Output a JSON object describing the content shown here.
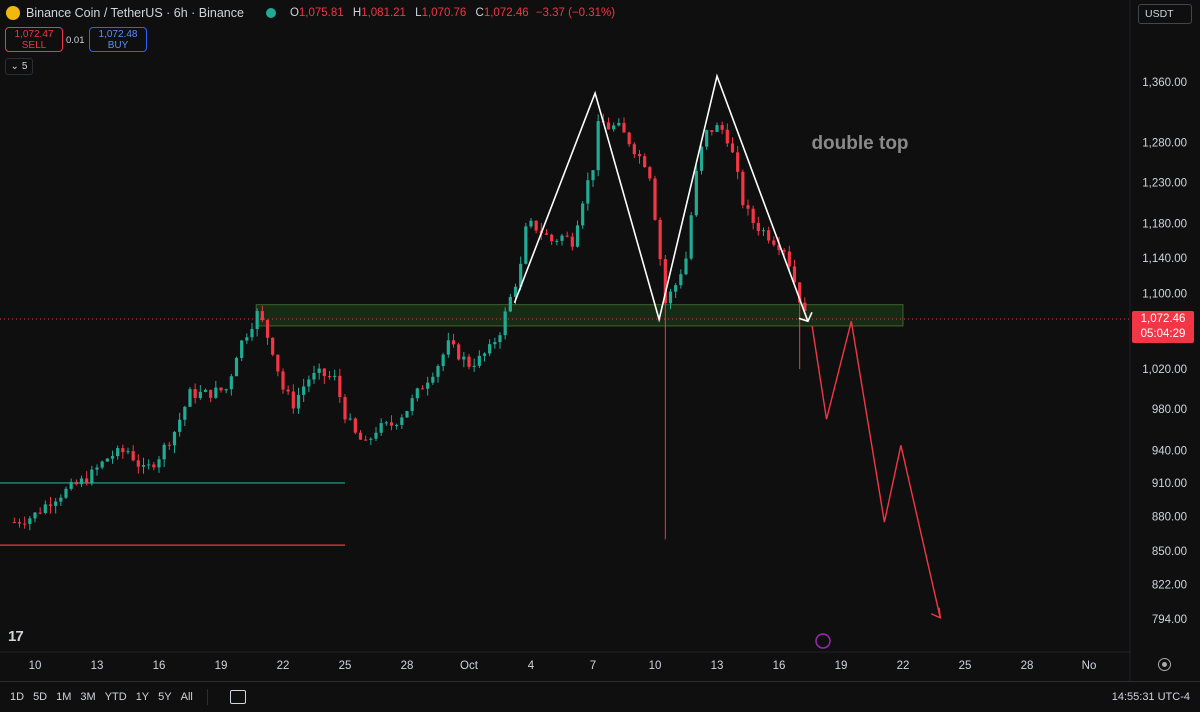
{
  "header": {
    "symbol": "Binance Coin / TetherUS · 6h · Binance",
    "o_label": "O",
    "o": "1,075.81",
    "h_label": "H",
    "h": "1,081.21",
    "l_label": "L",
    "l": "1,070.76",
    "c_label": "C",
    "c": "1,072.46",
    "change": "−3.37 (−0.31%)"
  },
  "trade": {
    "sell_price": "1,072.47",
    "sell_label": "SELL",
    "spread": "0.01",
    "buy_price": "1,072.48",
    "buy_label": "BUY"
  },
  "indicator_toggle": "5",
  "currency": "USDT",
  "last_price": {
    "value": "1,072.46",
    "countdown": "05:04:29"
  },
  "time_ranges": [
    "1D",
    "5D",
    "1M",
    "3M",
    "YTD",
    "1Y",
    "5Y",
    "All"
  ],
  "clock": "14:55:31 UTC-4",
  "colors": {
    "up": "#22ab94",
    "down": "#f23645",
    "background": "#0f0f0f",
    "pattern": "#ffffff",
    "projection": "#f23645"
  },
  "chart_data": {
    "type": "candlestick",
    "symbol": "BNBUSDT",
    "interval": "6h",
    "y_scale": "log",
    "ylim": [
      780,
      1400
    ],
    "y_ticks": [
      794,
      822,
      850,
      880,
      910,
      940,
      980,
      1020,
      1060,
      1100,
      1140,
      1180,
      1230,
      1280,
      1320,
      1360
    ],
    "y_tick_labels": [
      "794.00",
      "822.00",
      "850.00",
      "880.00",
      "910.00",
      "940.00",
      "980.00",
      "1,020.00",
      "",
      "1,100.00",
      "1,140.00",
      "1,180.00",
      "1,230.00",
      "1,280.00",
      "",
      "1,360.00"
    ],
    "x_ticks": [
      {
        "d": 10,
        "label": "10"
      },
      {
        "d": 13,
        "label": "13"
      },
      {
        "d": 16,
        "label": "16"
      },
      {
        "d": 19,
        "label": "19"
      },
      {
        "d": 22,
        "label": "22"
      },
      {
        "d": 25,
        "label": "25"
      },
      {
        "d": 28,
        "label": "28"
      },
      {
        "d": 31,
        "label": "Oct"
      },
      {
        "d": 34,
        "label": "4"
      },
      {
        "d": 37,
        "label": "7"
      },
      {
        "d": 40,
        "label": "10"
      },
      {
        "d": 43,
        "label": "13"
      },
      {
        "d": 46,
        "label": "16"
      },
      {
        "d": 49,
        "label": "19"
      },
      {
        "d": 52,
        "label": "22"
      },
      {
        "d": 55,
        "label": "25"
      },
      {
        "d": 58,
        "label": "28"
      },
      {
        "d": 61,
        "label": "No"
      }
    ],
    "x_start_label": "9",
    "grid": false,
    "anchors": [
      [
        9.0,
        875
      ],
      [
        9.9,
        880
      ],
      [
        10.8,
        895
      ],
      [
        11.7,
        905
      ],
      [
        12.6,
        915
      ],
      [
        13.6,
        935
      ],
      [
        14.5,
        940
      ],
      [
        15.3,
        920
      ],
      [
        16.0,
        935
      ],
      [
        16.8,
        960
      ],
      [
        17.5,
        995
      ],
      [
        18.3,
        995
      ],
      [
        19.3,
        1000
      ],
      [
        19.8,
        1040
      ],
      [
        20.8,
        1080
      ],
      [
        21.5,
        1040
      ],
      [
        22.0,
        1000
      ],
      [
        22.5,
        985
      ],
      [
        23.2,
        1010
      ],
      [
        23.8,
        1015
      ],
      [
        24.5,
        1010
      ],
      [
        25.0,
        975
      ],
      [
        25.5,
        955
      ],
      [
        26.0,
        945
      ],
      [
        26.5,
        960
      ],
      [
        27.3,
        965
      ],
      [
        28.0,
        980
      ],
      [
        28.8,
        1005
      ],
      [
        29.5,
        1025
      ],
      [
        30.0,
        1045
      ],
      [
        30.5,
        1035
      ],
      [
        31.0,
        1025
      ],
      [
        31.5,
        1030
      ],
      [
        32.0,
        1040
      ],
      [
        32.5,
        1060
      ],
      [
        33.0,
        1095
      ],
      [
        33.5,
        1130
      ],
      [
        33.8,
        1180
      ],
      [
        34.3,
        1175
      ],
      [
        35.0,
        1160
      ],
      [
        35.5,
        1165
      ],
      [
        36.0,
        1160
      ],
      [
        36.5,
        1210
      ],
      [
        37.0,
        1250
      ],
      [
        37.3,
        1310
      ],
      [
        37.7,
        1300
      ],
      [
        38.2,
        1300
      ],
      [
        38.8,
        1280
      ],
      [
        39.3,
        1260
      ],
      [
        39.7,
        1250
      ],
      [
        40.2,
        1150
      ],
      [
        40.5,
        1090
      ],
      [
        41.0,
        1110
      ],
      [
        41.5,
        1140
      ],
      [
        42.0,
        1240
      ],
      [
        42.4,
        1290
      ],
      [
        42.9,
        1300
      ],
      [
        43.4,
        1295
      ],
      [
        43.8,
        1260
      ],
      [
        44.3,
        1200
      ],
      [
        44.8,
        1180
      ],
      [
        45.3,
        1170
      ],
      [
        45.8,
        1160
      ],
      [
        46.3,
        1150
      ],
      [
        46.8,
        1110
      ],
      [
        47.3,
        1072.46
      ]
    ],
    "pattern": {
      "label": "double top",
      "zigzag": [
        [
          33.2,
          1090
        ],
        [
          37.1,
          1345
        ],
        [
          40.2,
          1072
        ],
        [
          43.0,
          1368
        ],
        [
          47.4,
          1070
        ]
      ],
      "arrow_tip": [
        47.4,
        1070
      ]
    },
    "projection": [
      [
        47.6,
        1065
      ],
      [
        48.3,
        970
      ],
      [
        49.5,
        1070
      ],
      [
        51.1,
        875
      ],
      [
        51.9,
        945
      ],
      [
        53.8,
        795
      ]
    ],
    "support_zone": {
      "from_d": 20.7,
      "to_d": 52,
      "low": 1065,
      "high": 1088
    },
    "hlines": [
      {
        "from_d": 9,
        "to_d": 25,
        "y": 910,
        "color": "#22ab94"
      },
      {
        "from_d": 9,
        "to_d": 25,
        "y": 855,
        "color": "#f23645"
      }
    ],
    "current_price_line": 1072.46,
    "wicks_extreme": [
      {
        "d": 40.4,
        "low": 860
      },
      {
        "d": 46.9,
        "low": 1020
      }
    ]
  }
}
